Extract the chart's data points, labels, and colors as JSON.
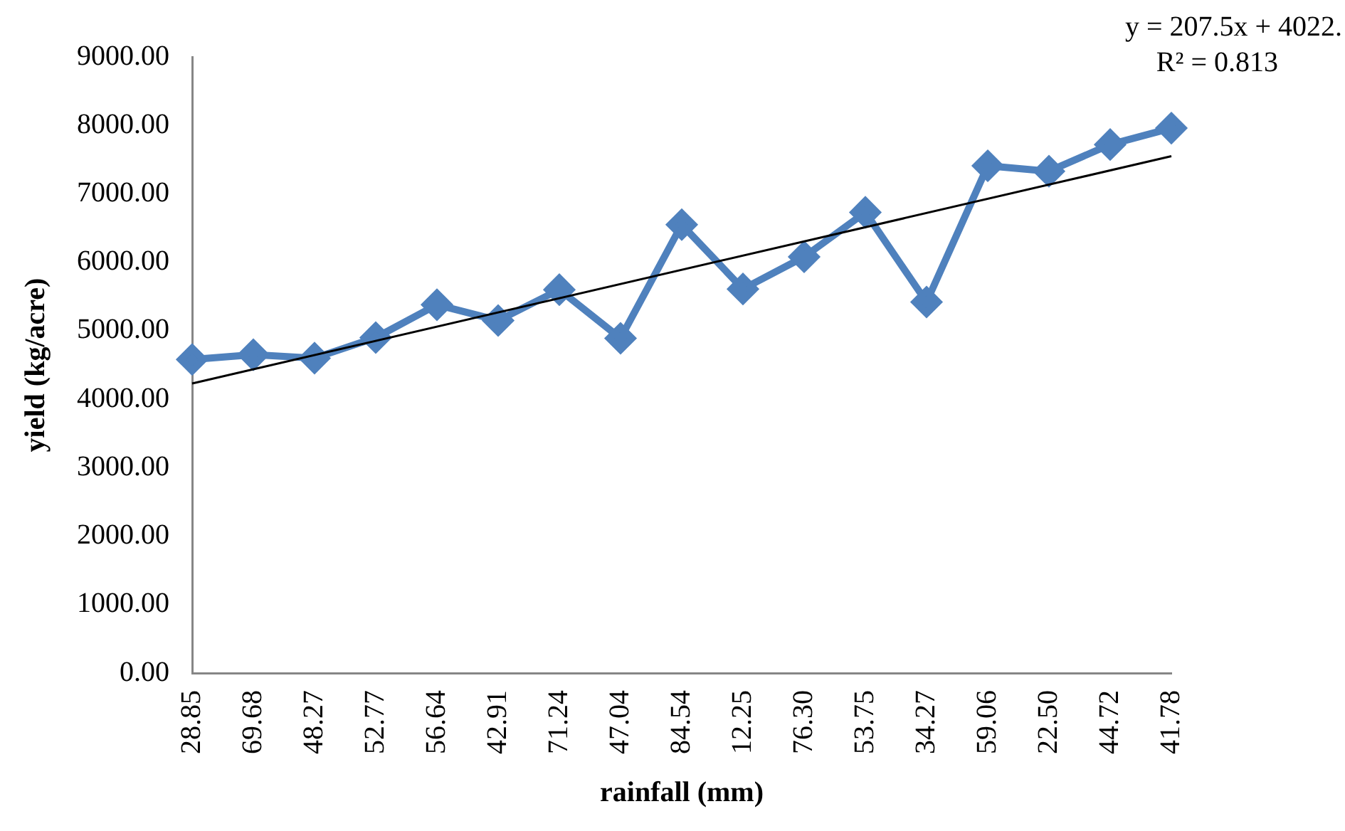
{
  "chart_data": {
    "type": "line",
    "xlabel": "rainfall (mm)",
    "ylabel": "yield (kg/acre)",
    "categories": [
      "28.85",
      "69.68",
      "48.27",
      "52.77",
      "56.64",
      "42.91",
      "71.24",
      "47.04",
      "84.54",
      "12.25",
      "76.30",
      "53.75",
      "34.27",
      "59.06",
      "22.50",
      "44.72",
      "41.78"
    ],
    "series": [
      {
        "color": "#4f81bd",
        "marker": "diamond",
        "values": [
          4580,
          4650,
          4600,
          4900,
          5380,
          5150,
          5600,
          4890,
          6550,
          5610,
          6080,
          6730,
          5420,
          7410,
          7330,
          7720,
          7960
        ]
      },
      {
        "color": "#000000",
        "marker": "none",
        "values": [
          4230,
          null,
          null,
          null,
          null,
          null,
          null,
          null,
          null,
          null,
          null,
          null,
          null,
          null,
          null,
          null,
          7550
        ]
      }
    ],
    "ylim": [
      0,
      9000
    ],
    "yticks": [
      {
        "value": 0,
        "label": "0.00"
      },
      {
        "value": 1000,
        "label": "1000.00"
      },
      {
        "value": 2000,
        "label": "2000.00"
      },
      {
        "value": 3000,
        "label": "3000.00"
      },
      {
        "value": 4000,
        "label": "4000.00"
      },
      {
        "value": 5000,
        "label": "5000.00"
      },
      {
        "value": 6000,
        "label": "6000.00"
      },
      {
        "value": 7000,
        "label": "7000.00"
      },
      {
        "value": 8000,
        "label": "8000.00"
      },
      {
        "value": 9000,
        "label": "9000.00"
      }
    ],
    "annotations": [
      "y = 207.5x + 4022.",
      "R² = 0.813"
    ],
    "grid": false,
    "legend": false
  }
}
